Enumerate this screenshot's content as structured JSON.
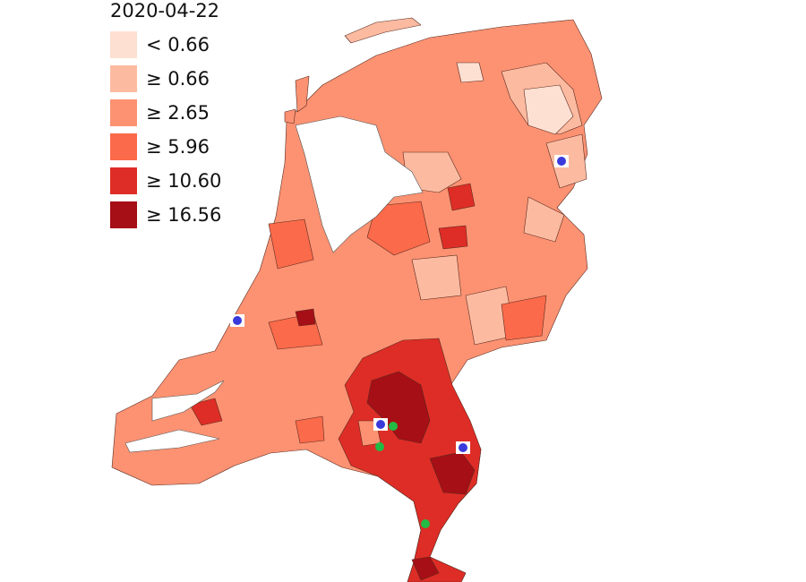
{
  "legend": {
    "title": "2020-04-22",
    "items": [
      {
        "label": "< 0.66",
        "color": "#fee0d2"
      },
      {
        "label": "≥ 0.66",
        "color": "#fcbba1"
      },
      {
        "label": "≥ 2.65",
        "color": "#fc9272"
      },
      {
        "label": "≥ 5.96",
        "color": "#fb6a4a"
      },
      {
        "label": "≥ 10.60",
        "color": "#de2d26"
      },
      {
        "label": "≥ 16.56",
        "color": "#a50f15"
      }
    ]
  }
}
